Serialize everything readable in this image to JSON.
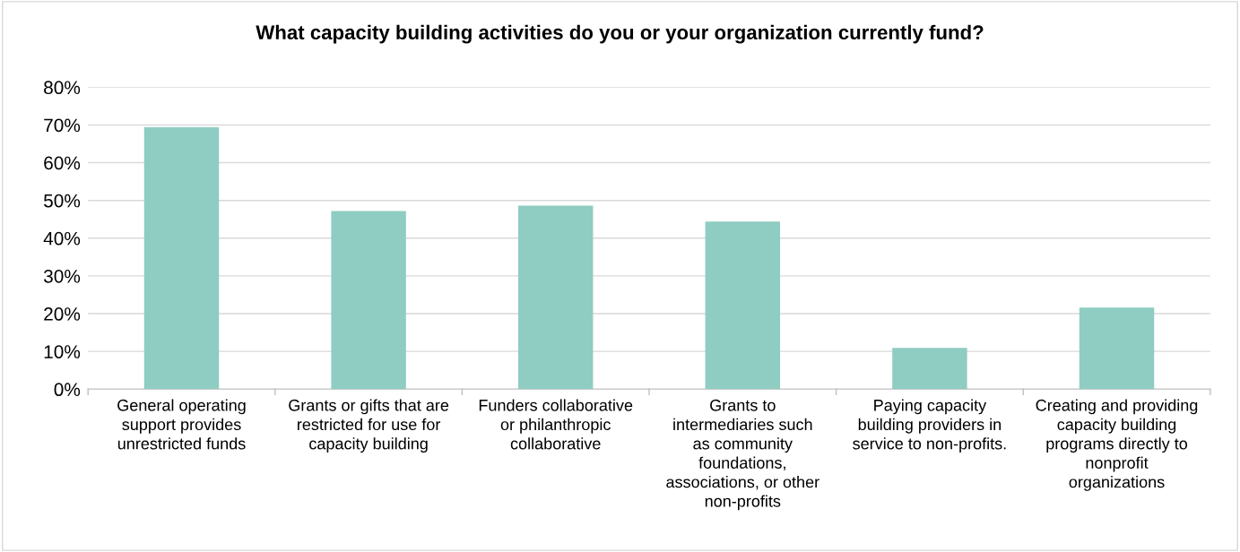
{
  "chart_data": {
    "type": "bar",
    "title": "What capacity building activities do you or your organization currently fund?",
    "categories": [
      "General operating\nsupport provides\nunrestricted funds",
      "Grants or gifts that are\nrestricted for use for\ncapacity building",
      "Funders collaborative\nor philanthropic\ncollaborative",
      "Grants to\nintermediaries such\nas community\nfoundations,\nassociations, or other\nnon-profits",
      "Paying capacity\nbuilding providers in\nservice to non-profits.",
      "Creating and providing\ncapacity building\nprograms directly to\nnonprofit\norganizations"
    ],
    "values": [
      69.4,
      47.2,
      48.6,
      44.4,
      10.9,
      21.6
    ],
    "color": "#8fccc1",
    "ylim": [
      0,
      80
    ],
    "yticks": [
      {
        "value": 0,
        "label": "0%"
      },
      {
        "value": 10,
        "label": "10%"
      },
      {
        "value": 20,
        "label": "20%"
      },
      {
        "value": 30,
        "label": "30%"
      },
      {
        "value": 40,
        "label": "40%"
      },
      {
        "value": 50,
        "label": "50%"
      },
      {
        "value": 60,
        "label": "60%"
      },
      {
        "value": 70,
        "label": "70%"
      },
      {
        "value": 80,
        "label": "80%"
      }
    ],
    "grid": "y"
  }
}
